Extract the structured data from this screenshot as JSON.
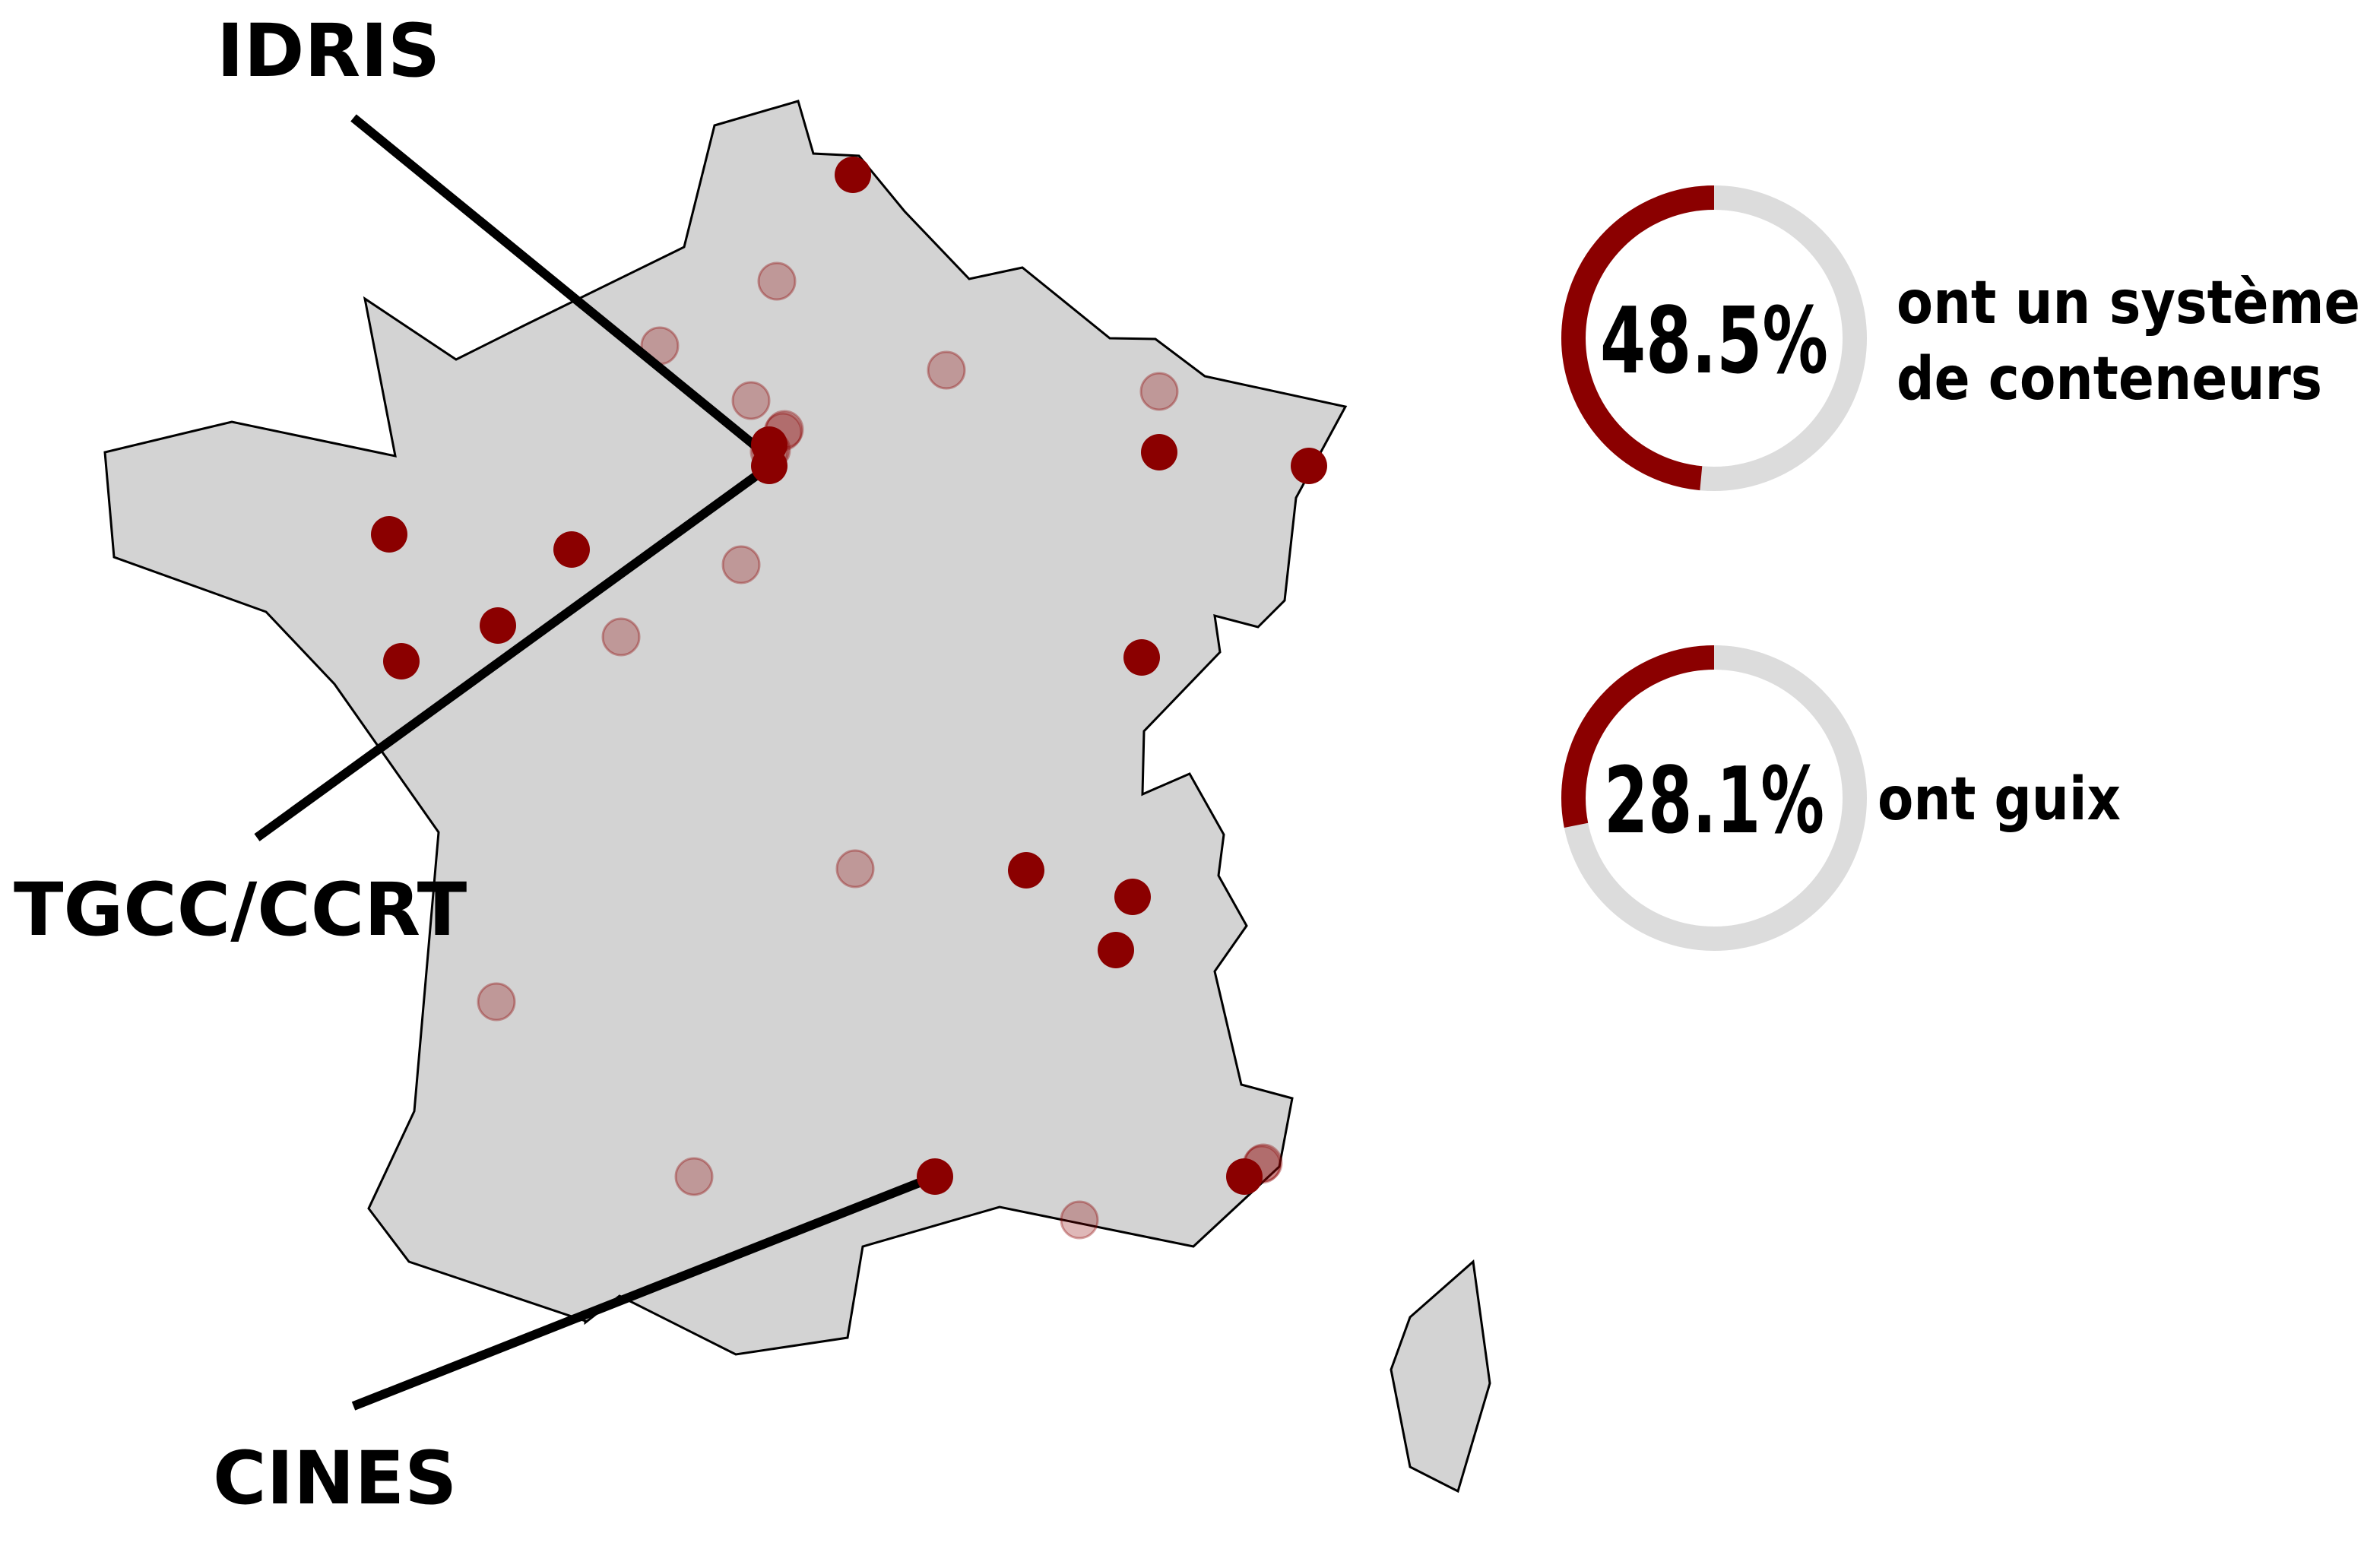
{
  "map": {
    "fill": "#d3d3d3",
    "stroke": "#000000"
  },
  "sites": {
    "dot_color": "#8b0000",
    "faded_opacity": 0.28,
    "with_containers": 16,
    "without_containers": 17
  },
  "centers": [
    {
      "id": "idris",
      "label": "IDRIS"
    },
    {
      "id": "tgcc",
      "label": "TGCC/CCRT"
    },
    {
      "id": "cines",
      "label": "CINES"
    }
  ],
  "stats": [
    {
      "id": "containers",
      "value": 48.5,
      "label": "48.5%",
      "caption_lines": [
        "ont un système",
        "de conteneurs"
      ]
    },
    {
      "id": "guix",
      "value": 28.1,
      "label": "28.1%",
      "caption_lines": [
        "ont guix"
      ]
    }
  ],
  "colors": {
    "accent": "#8b0000",
    "ring_track": "#dcdcdc",
    "leader_line": "#000000"
  }
}
